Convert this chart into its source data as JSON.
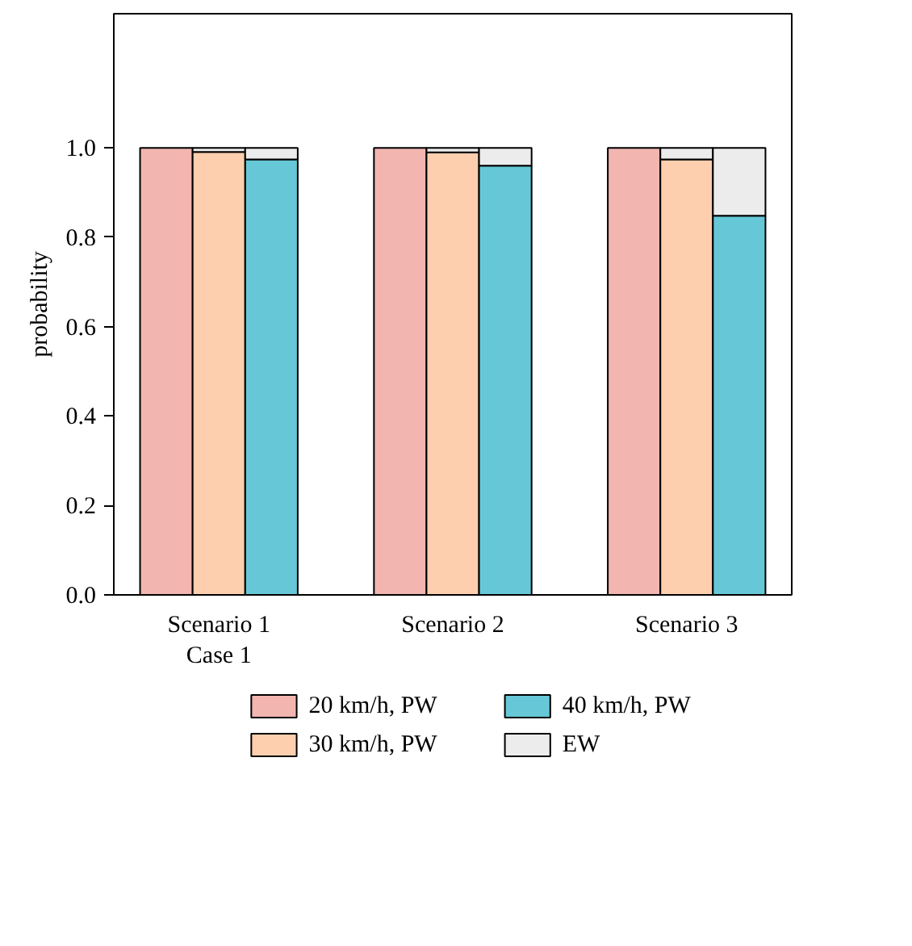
{
  "chart_data": {
    "type": "bar",
    "stacked": true,
    "ylabel": "probability",
    "categories": [
      null,
      "Scenario 1\nCase 1",
      null,
      null,
      "Scenario 2",
      null,
      null,
      "Scenario 3",
      null
    ],
    "series": [
      {
        "name": "20 km/h, PW",
        "color": "#f2b5b0",
        "values": [
          1.0,
          null,
          null,
          1.0,
          null,
          null,
          1.0,
          null,
          null
        ]
      },
      {
        "name": "30 km/h, PW",
        "color": "#fdcfae",
        "values": [
          null,
          0.991,
          null,
          null,
          0.99,
          null,
          null,
          0.974,
          null
        ]
      },
      {
        "name": "40 km/h, PW",
        "color": "#66c8d6",
        "values": [
          null,
          null,
          0.974,
          null,
          null,
          0.96,
          null,
          null,
          0.848
        ]
      },
      {
        "name": "EW",
        "color": "#ececec",
        "values": [
          null,
          0.009,
          0.026,
          null,
          0.01,
          0.04,
          null,
          0.026,
          0.152
        ]
      }
    ],
    "ylim": [
      0,
      1.3
    ],
    "yticks": [
      {
        "value": 0,
        "label": "0.0"
      },
      {
        "value": 0.2,
        "label": "0.2"
      },
      {
        "value": 0.4,
        "label": "0.4"
      },
      {
        "value": 0.6,
        "label": "0.6"
      },
      {
        "value": 0.8,
        "label": "0.8"
      },
      {
        "value": 1.0,
        "label": "1.0"
      }
    ],
    "grid": false,
    "legend": "bottom"
  }
}
